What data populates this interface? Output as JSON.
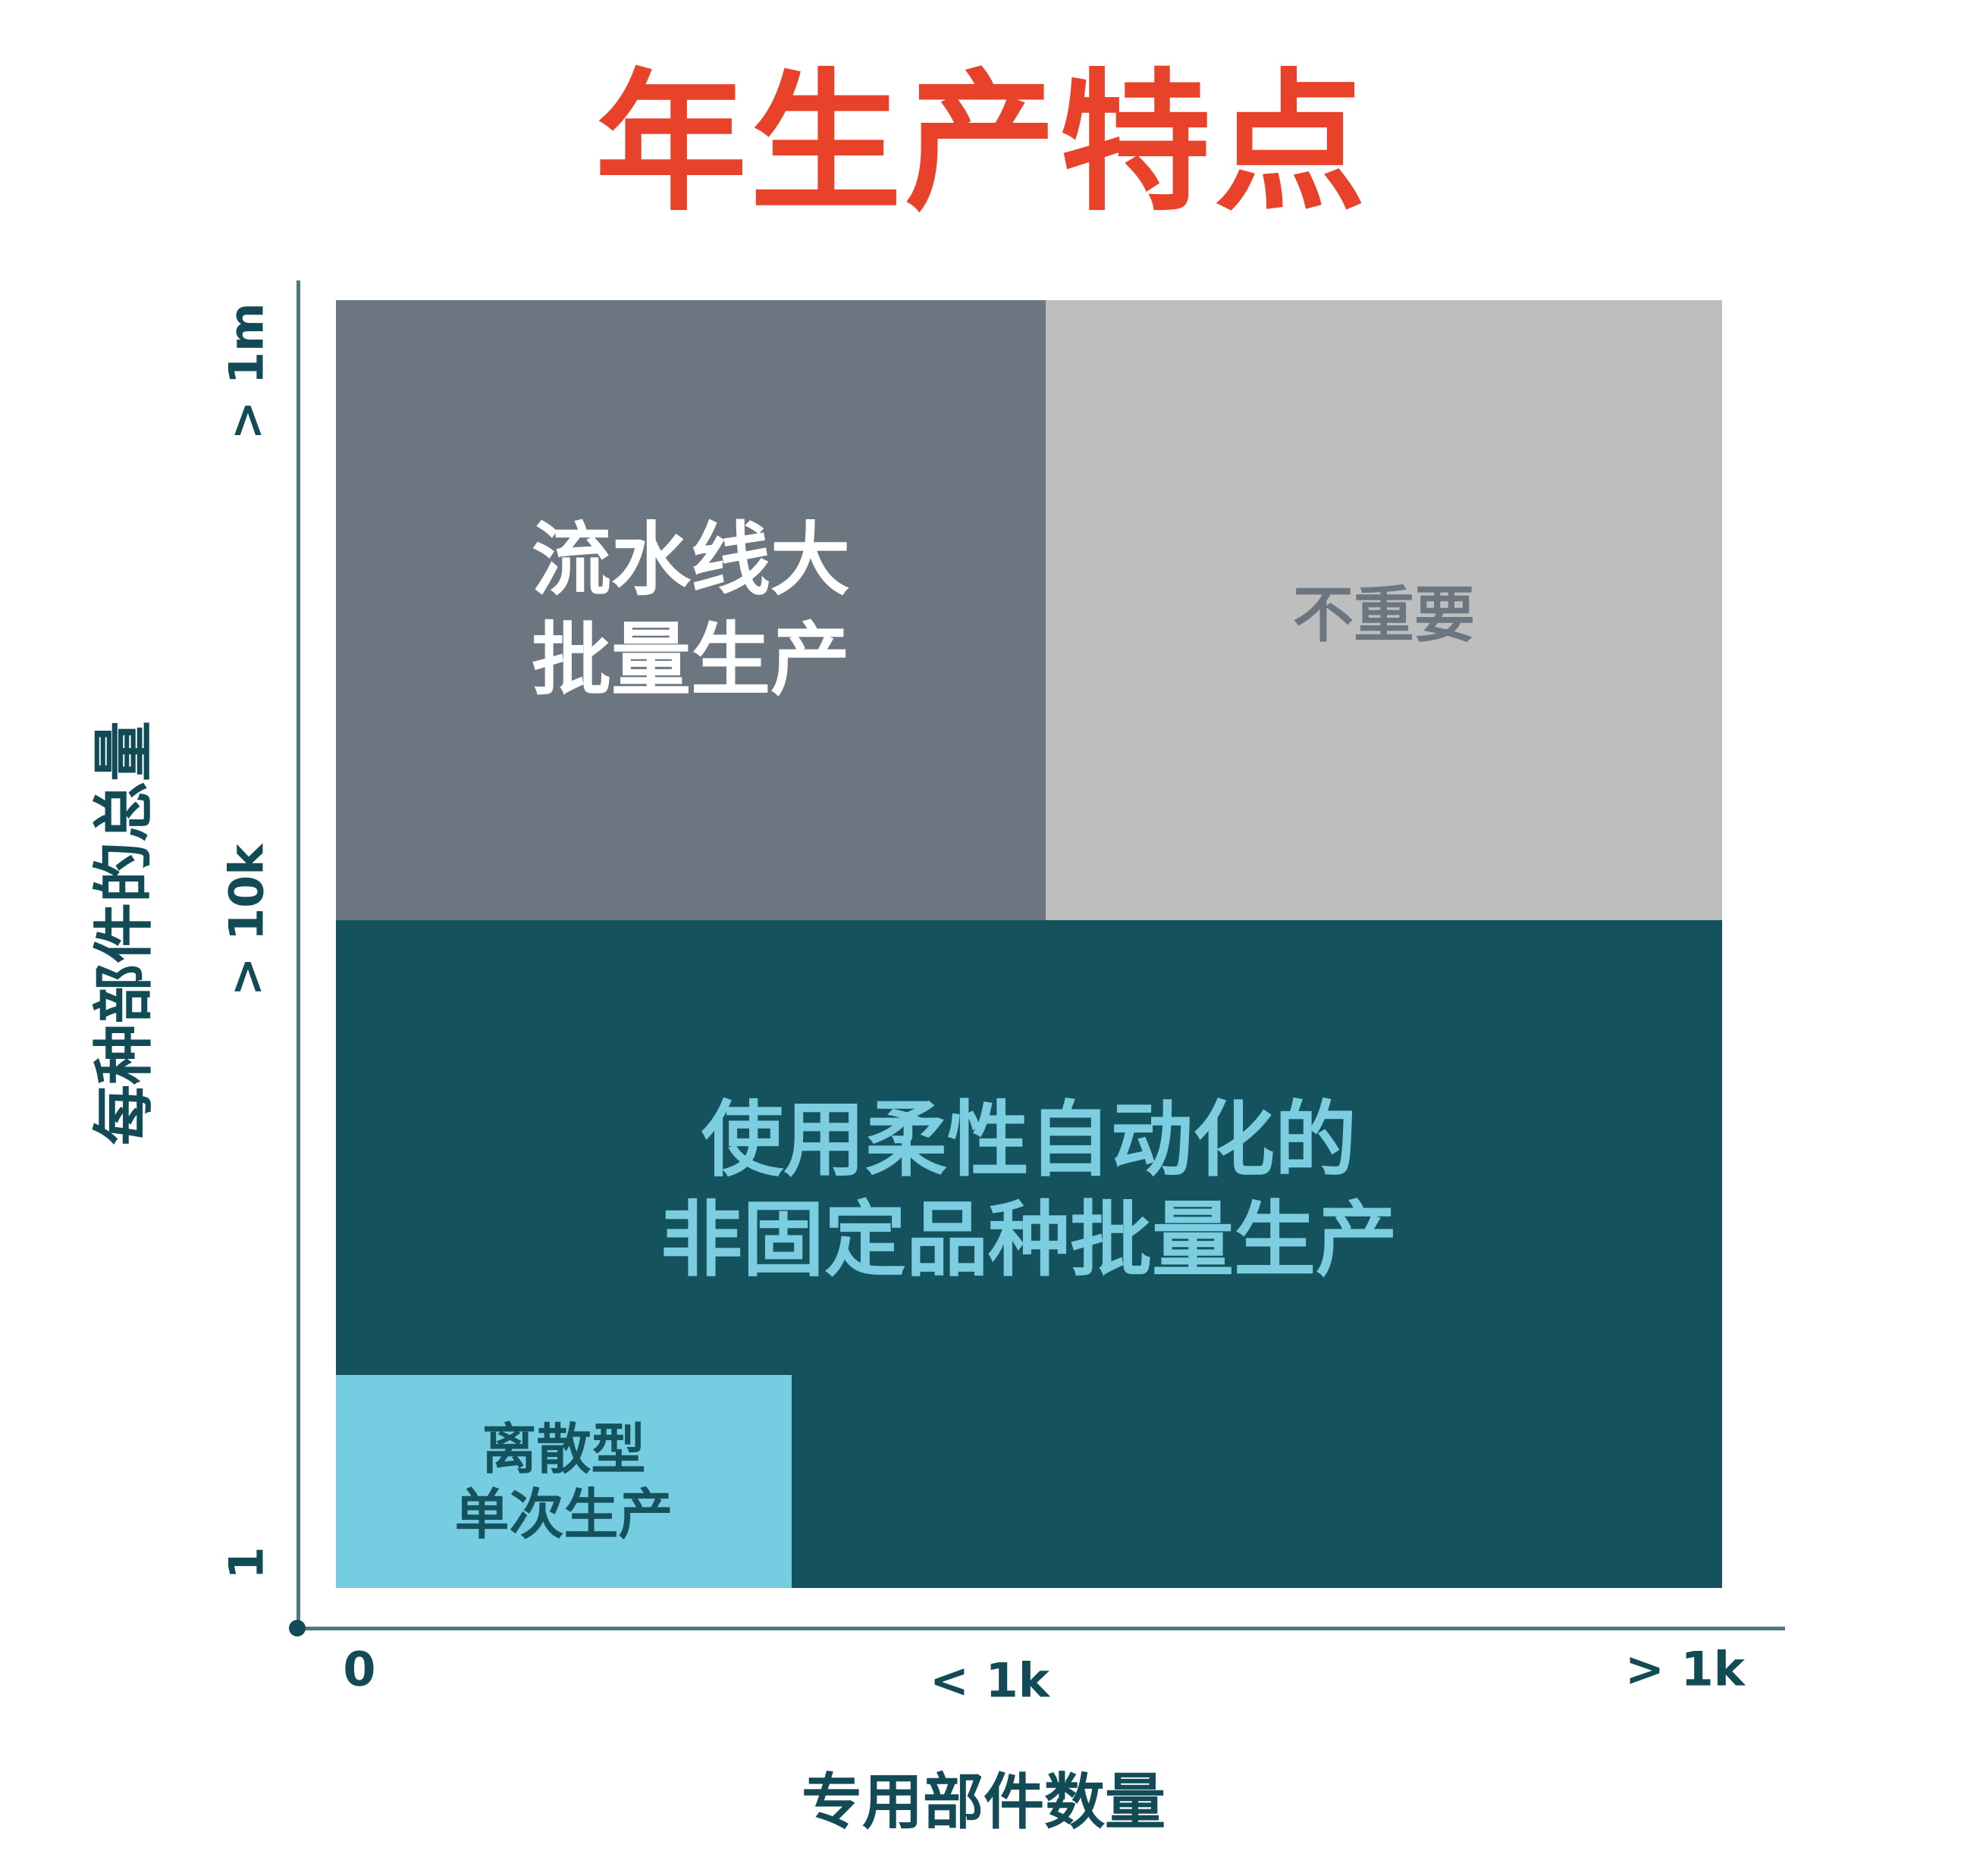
{
  "title": "年生产特点",
  "colors": {
    "title": "#e8432a",
    "mass_production": "#6b7680",
    "not_important": "#bebebe",
    "flexible_automation": "#14535e",
    "discrete": "#76cce0",
    "axis_text": "#124a55"
  },
  "y_axis": {
    "label": "每种部件的总量",
    "ticks": [
      "> 1m",
      "> 10k",
      "1"
    ]
  },
  "x_axis": {
    "label": "专用部件数量",
    "ticks": [
      "0",
      "< 1k",
      "> 1k"
    ]
  },
  "regions": {
    "mass_production": {
      "line1": "流水线大",
      "line2": "批量生产"
    },
    "not_important": {
      "line1": "不重要"
    },
    "flexible_automation": {
      "line1": "使用柔性自动化的",
      "line2": "非固定品种批量生产"
    },
    "discrete": {
      "line1": "离散型",
      "line2": "单次生产"
    }
  }
}
